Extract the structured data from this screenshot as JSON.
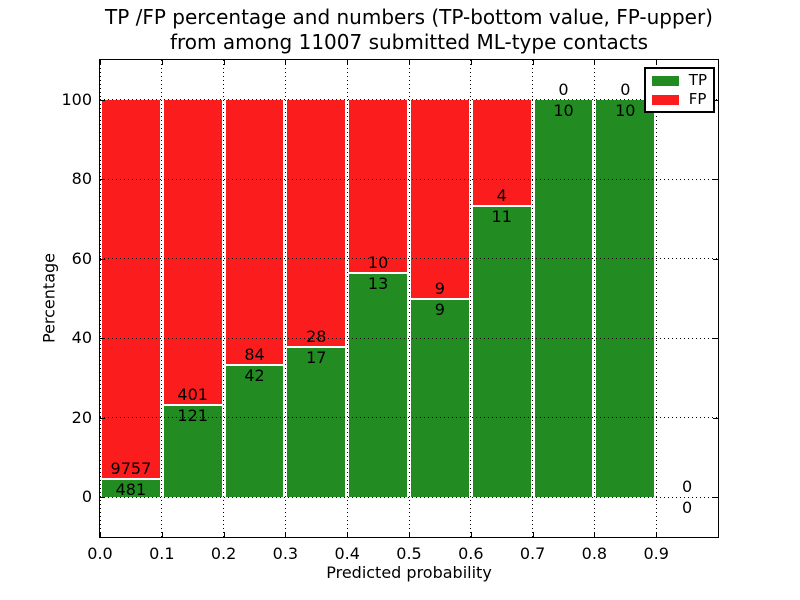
{
  "chart_data": {
    "type": "bar",
    "subtype": "stacked-percentage",
    "title_line1": "TP /FP percentage and numbers (TP-bottom value, FP-upper)",
    "title_line2": "from among 11007 submitted ML-type contacts",
    "xlabel": "Predicted probability",
    "ylabel": "Percentage",
    "xlim": [
      0.0,
      1.0
    ],
    "ylim": [
      -10,
      110
    ],
    "bin_width": 0.1,
    "bin_starts": [
      0.0,
      0.1,
      0.2,
      0.3,
      0.4,
      0.5,
      0.6,
      0.7,
      0.8,
      0.9
    ],
    "x_ticks": [
      {
        "v": 0.0,
        "label": "0.0"
      },
      {
        "v": 0.1,
        "label": "0.1"
      },
      {
        "v": 0.2,
        "label": "0.2"
      },
      {
        "v": 0.3,
        "label": "0.3"
      },
      {
        "v": 0.4,
        "label": "0.4"
      },
      {
        "v": 0.5,
        "label": "0.5"
      },
      {
        "v": 0.6,
        "label": "0.6"
      },
      {
        "v": 0.7,
        "label": "0.7"
      },
      {
        "v": 0.8,
        "label": "0.8"
      },
      {
        "v": 0.9,
        "label": "0.9"
      }
    ],
    "y_ticks": [
      {
        "v": 0,
        "label": "0"
      },
      {
        "v": 20,
        "label": "20"
      },
      {
        "v": 40,
        "label": "40"
      },
      {
        "v": 60,
        "label": "60"
      },
      {
        "v": 80,
        "label": "80"
      },
      {
        "v": 100,
        "label": "100"
      }
    ],
    "series": [
      {
        "name": "TP",
        "color": "#228B22",
        "values": [
          481,
          121,
          42,
          17,
          13,
          9,
          11,
          10,
          10,
          0
        ]
      },
      {
        "name": "FP",
        "color": "#FB1D1D",
        "values": [
          9757,
          401,
          84,
          28,
          10,
          9,
          4,
          0,
          0,
          0
        ]
      }
    ],
    "tp_percent_by_bin": [
      4.7,
      23.2,
      33.3,
      37.8,
      56.5,
      50.0,
      73.3,
      100.0,
      100.0,
      0.0
    ],
    "total_contacts": 11007,
    "legend": {
      "entries": [
        "TP",
        "FP"
      ],
      "position": "upper right"
    },
    "grid": {
      "style": "dotted",
      "color": "#000000"
    },
    "background": "#FFFFFF"
  }
}
